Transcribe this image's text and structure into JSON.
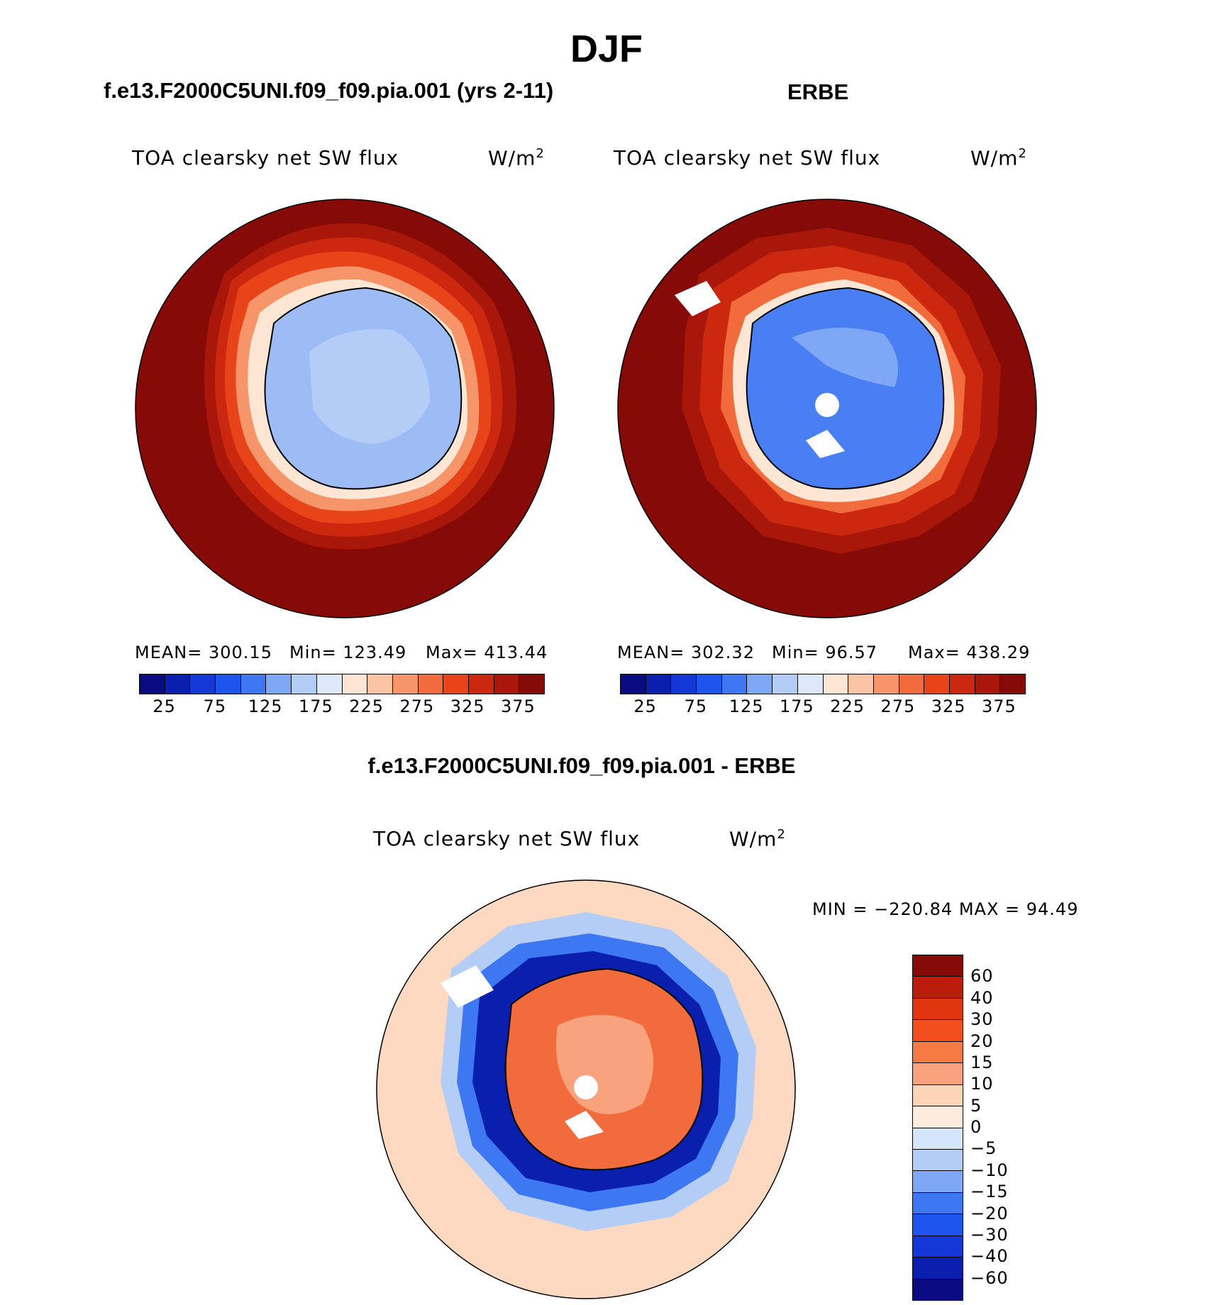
{
  "title": "DJF",
  "panels": {
    "left": {
      "case": "f.e13.F2000C5UNI.f09_f09.pia.001 (yrs 2-11)",
      "variable": "TOA clearsky net SW flux",
      "units": "W/m",
      "units_sup": "2",
      "mean_label": "MEAN= 300.15",
      "min_label": "Min= 123.49",
      "max_label": "Max= 413.44"
    },
    "right": {
      "case": "ERBE",
      "variable": "TOA clearsky net SW flux",
      "units": "W/m",
      "units_sup": "2",
      "mean_label": "MEAN= 302.32",
      "min_label": "Min=  96.57",
      "max_label": "Max= 438.29"
    },
    "diff": {
      "case": "f.e13.F2000C5UNI.f09_f09.pia.001 - ERBE",
      "variable": "TOA clearsky net SW flux",
      "units": "W/m",
      "units_sup": "2",
      "minmax_label": "MIN = −220.84 MAX =   94.49"
    }
  },
  "colorbar_abs": {
    "ticks": [
      "25",
      "75",
      "125",
      "175",
      "225",
      "275",
      "325",
      "375"
    ],
    "colors": [
      "#0a0a82",
      "#0b1fae",
      "#1438d6",
      "#1f55ef",
      "#3d78f2",
      "#7ea8f5",
      "#b3cdf7",
      "#dde9fa",
      "#fde6d3",
      "#fac4a5",
      "#f6956a",
      "#f26b3c",
      "#e8441a",
      "#cc2810",
      "#a8170a",
      "#860a05"
    ]
  },
  "colorbar_diff": {
    "labels": [
      "60",
      "40",
      "30",
      "20",
      "15",
      "10",
      "5",
      "0",
      "−5",
      "−10",
      "−15",
      "−20",
      "−30",
      "−40",
      "−60"
    ],
    "colors": [
      "#860a05",
      "#bb1c0b",
      "#e0350f",
      "#f24f1f",
      "#f57a43",
      "#f8a37d",
      "#fcd4b6",
      "#fdecdd",
      "#d6e6fa",
      "#b3cdf7",
      "#7ea8f5",
      "#3d78f2",
      "#1f55ef",
      "#1438d6",
      "#0b1fae",
      "#0a0a82"
    ]
  },
  "map_colors": {
    "ocean_high": "#860a05",
    "ring_1": "#cc2810",
    "ring_2": "#e8441a",
    "ring_3": "#f6956a",
    "ring_4": "#fde6d3",
    "land_left": "#9dbcf6",
    "land_left_inner": "#b3cdf7",
    "land_right": "#4a7ef3",
    "land_right_inner": "#7ea8f5",
    "diff_bg": "#fcd9c0",
    "diff_neg_ring": "#0b1fae",
    "diff_neg_soft": "#7ea8f5",
    "diff_land": "#f26b3c",
    "diff_land_inner": "#f8a37d",
    "coast": "#000000"
  }
}
